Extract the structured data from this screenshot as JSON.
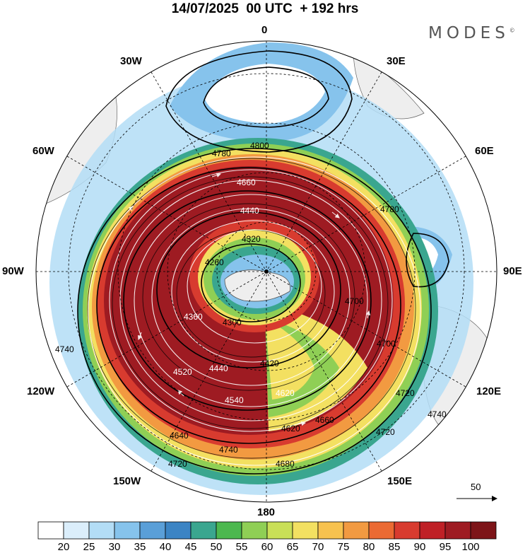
{
  "header": {
    "title": "14/07/2025  00 UTC  + 192 hrs",
    "logo": "MODES"
  },
  "longitude_labels": {
    "n0": "0",
    "n30e": "30E",
    "n60e": "60E",
    "n90e": "90E",
    "n120e": "120E",
    "n150e": "150E",
    "n180": "180",
    "n150w": "150W",
    "n120w": "120W",
    "n90w": "90W",
    "n60w": "60W",
    "n30w": "30W"
  },
  "contour_labels": [
    "4800",
    "4780",
    "4660",
    "4440",
    "4320",
    "4260",
    "4360",
    "4300",
    "4420",
    "4440",
    "4520",
    "4540",
    "4620",
    "4640",
    "4720",
    "4700",
    "4740",
    "4780",
    "4620",
    "4680",
    "4660",
    "4720",
    "4720",
    "4740",
    "4740",
    "4700"
  ],
  "wind_scale": {
    "value": "50"
  },
  "colorbar": {
    "levels": [
      "20",
      "25",
      "30",
      "35",
      "40",
      "45",
      "50",
      "55",
      "60",
      "65",
      "70",
      "75",
      "80",
      "85",
      "90",
      "95",
      "100"
    ],
    "colors": [
      "#ffffff",
      "#dbeefb",
      "#b3ddf6",
      "#86c3ec",
      "#5a9fd8",
      "#3b84c4",
      "#3aa68f",
      "#4cb84f",
      "#8fcf55",
      "#c9df57",
      "#f3e061",
      "#f7c24f",
      "#f29a41",
      "#eb6a33",
      "#d83b2f",
      "#bf2026",
      "#9e1b22",
      "#7d1418"
    ]
  }
}
